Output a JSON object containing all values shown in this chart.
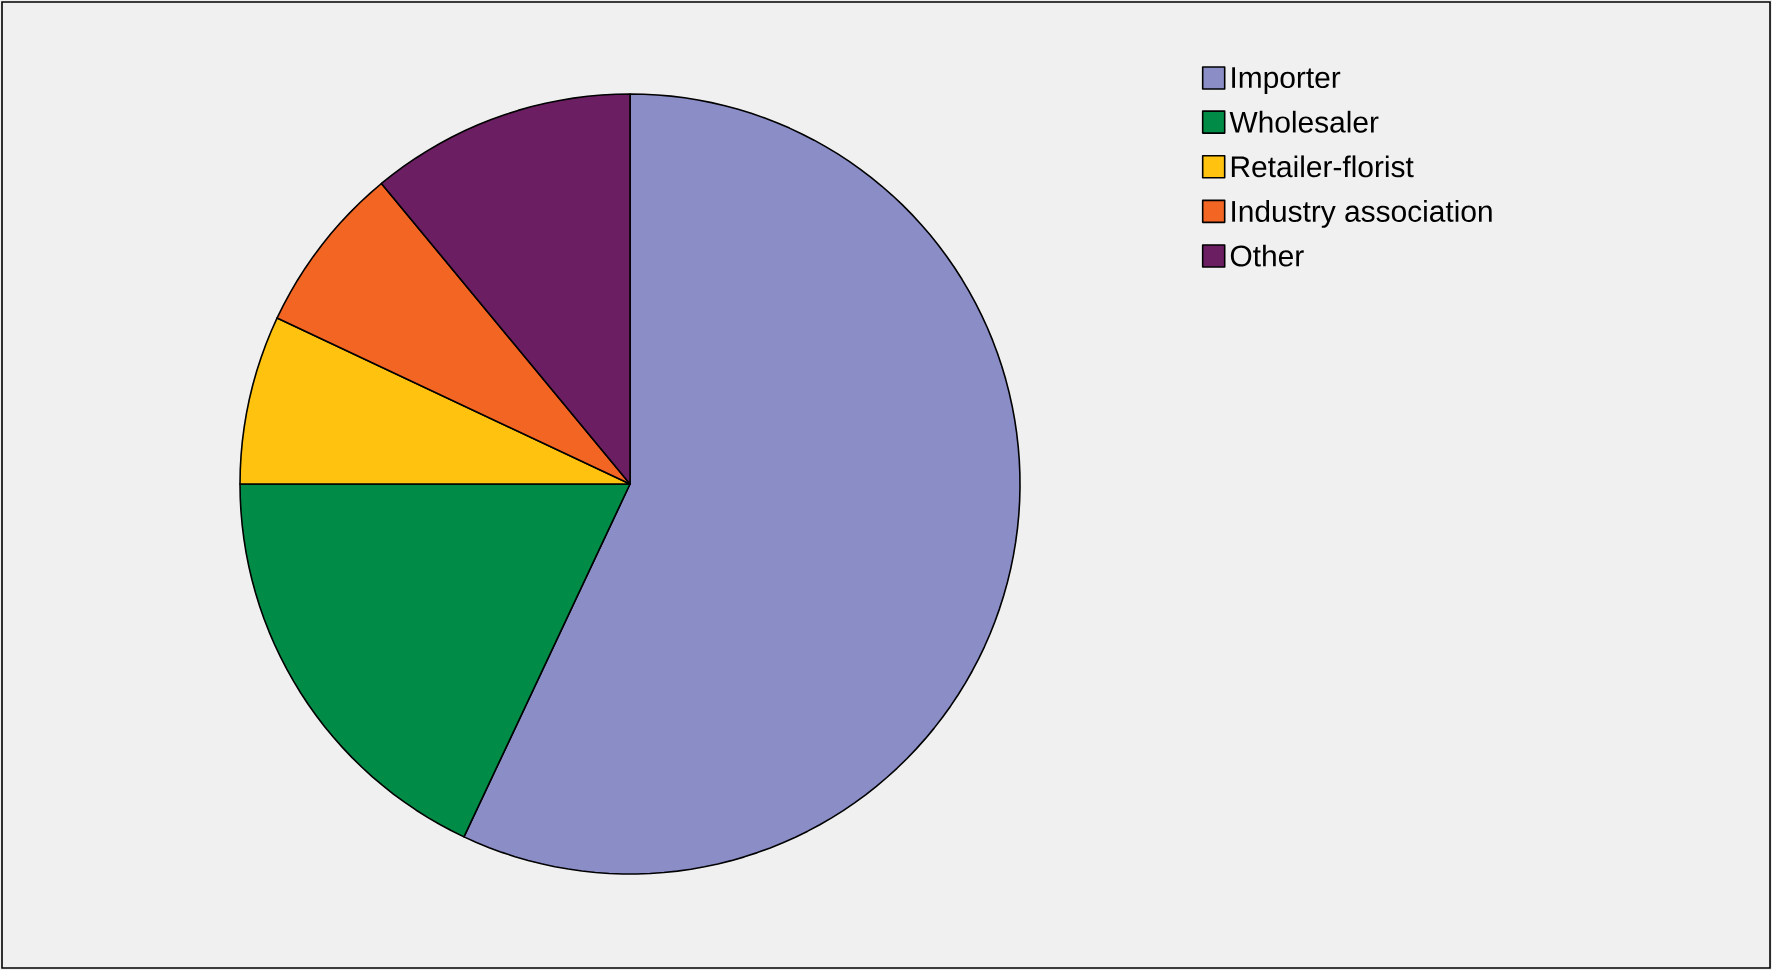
{
  "chart_data": {
    "type": "pie",
    "categories": [
      "Importer",
      "Wholesaler",
      "Retailer-florist",
      "Industry association",
      "Other"
    ],
    "values": [
      57,
      18,
      7,
      7,
      11
    ],
    "colors": [
      "#8a8dc6",
      "#008c46",
      "#ffc20e",
      "#f26522",
      "#6b1f62"
    ],
    "legend": "top right"
  }
}
